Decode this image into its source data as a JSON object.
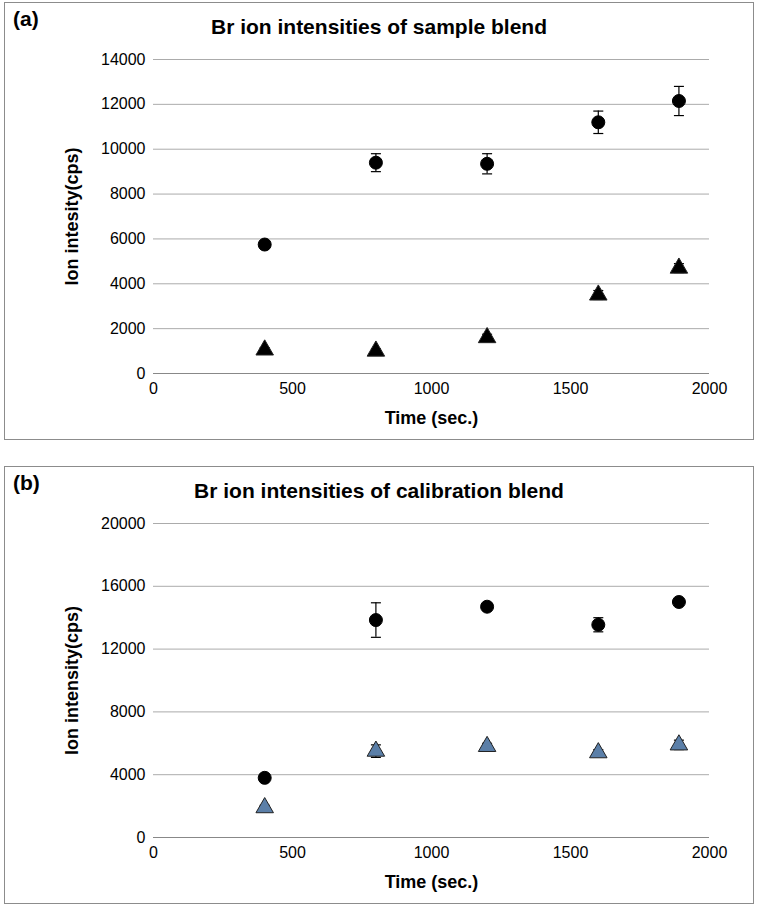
{
  "chart_data": [
    {
      "type": "scatter",
      "annotation": "(a)",
      "title": "Br ion intensities of sample blend",
      "x_label": "Time (sec.)",
      "y_label": "Ion intesity(cps)",
      "x": [
        400,
        800,
        1200,
        1600,
        1890
      ],
      "xlim": [
        0,
        2000
      ],
      "xticks": [
        0,
        500,
        1000,
        1500,
        2000
      ],
      "ylim": [
        0,
        14000
      ],
      "yticks": [
        0,
        2000,
        4000,
        6000,
        8000,
        10000,
        12000,
        14000
      ],
      "grid": true,
      "series": [
        {
          "marker": "circle",
          "color": "#000000",
          "values": [
            5750,
            9400,
            9350,
            11200,
            12150
          ],
          "errors": [
            150,
            400,
            450,
            500,
            650
          ]
        },
        {
          "marker": "triangle",
          "color": "#000000",
          "values": [
            1050,
            1000,
            1600,
            3500,
            4700
          ],
          "errors": [
            100,
            100,
            150,
            200,
            200
          ]
        }
      ]
    },
    {
      "type": "scatter",
      "annotation": "(b)",
      "title": "Br ion intensities of calibration blend",
      "x_label": "Time (sec.)",
      "y_label": "Ion intensity(cps)",
      "x": [
        400,
        800,
        1200,
        1600,
        1890
      ],
      "xlim": [
        0,
        2000
      ],
      "xticks": [
        0,
        500,
        1000,
        1500,
        2000
      ],
      "ylim": [
        0,
        20000
      ],
      "yticks": [
        0,
        4000,
        8000,
        12000,
        16000,
        20000
      ],
      "grid": true,
      "series": [
        {
          "marker": "circle",
          "color": "#000000",
          "values": [
            3800,
            13850,
            14700,
            13550,
            15000
          ],
          "errors": [
            150,
            1100,
            200,
            450,
            200
          ]
        },
        {
          "marker": "triangle",
          "color": "#5b7fa8",
          "values": [
            1900,
            5500,
            5800,
            5400,
            5900
          ],
          "errors": [
            150,
            400,
            200,
            200,
            300
          ]
        }
      ]
    }
  ]
}
